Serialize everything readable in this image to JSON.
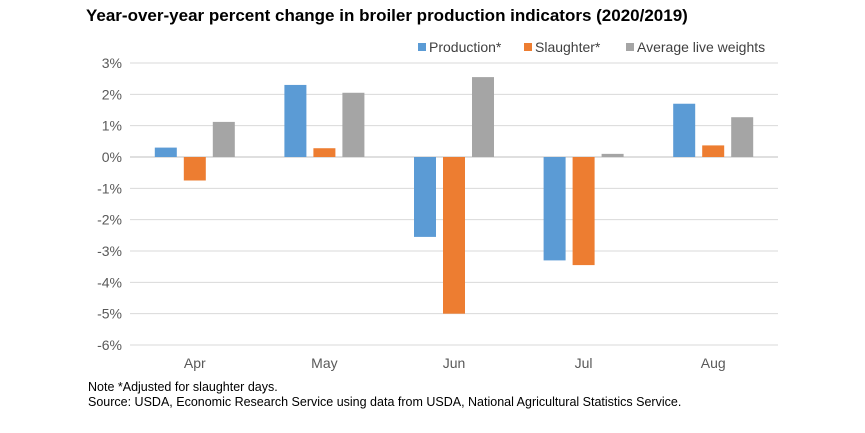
{
  "chart_data": {
    "type": "bar",
    "title": "Year-over-year percent change in broiler production indicators (2020/2019)",
    "categories": [
      "Apr",
      "May",
      "Jun",
      "Jul",
      "Aug"
    ],
    "series": [
      {
        "name": "Production*",
        "color": "#5B9BD5",
        "values": [
          0.3,
          2.3,
          -2.55,
          -3.3,
          1.7
        ]
      },
      {
        "name": "Slaughter*",
        "color": "#ED7D31",
        "values": [
          -0.75,
          0.28,
          -5.0,
          -3.45,
          0.37
        ]
      },
      {
        "name": "Average live weights",
        "color": "#A5A5A5",
        "values": [
          1.12,
          2.05,
          2.55,
          0.1,
          1.27
        ]
      }
    ],
    "y_ticks": [
      "3%",
      "2%",
      "1%",
      "0%",
      "-1%",
      "-2%",
      "-3%",
      "-4%",
      "-5%",
      "-6%"
    ],
    "ylim": [
      -6,
      3
    ],
    "grid": true,
    "legend_position": "top-right",
    "xlabel": "",
    "ylabel": ""
  },
  "notes": {
    "note": "Note *Adjusted for slaughter days.",
    "source": "Source: USDA, Economic Research Service using data from USDA, National Agricultural Statistics Service."
  }
}
